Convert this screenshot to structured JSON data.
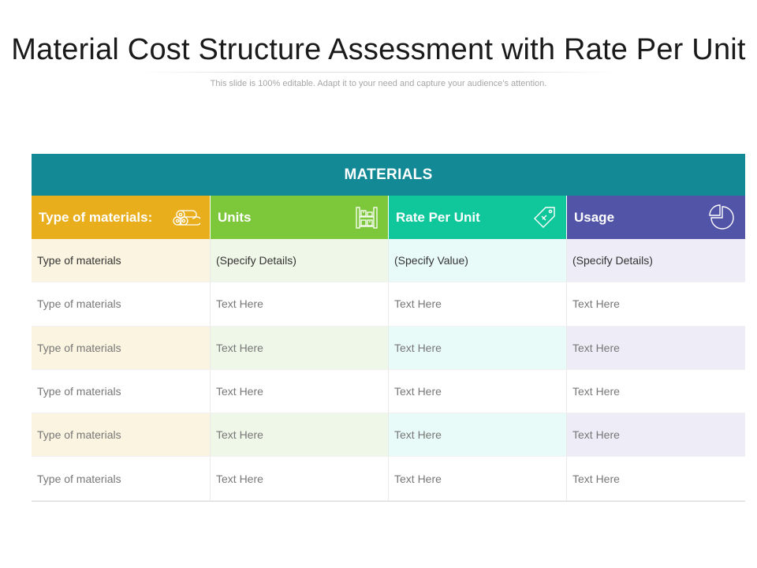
{
  "title": "Material Cost Structure Assessment with Rate Per Unit",
  "subtitle": "This slide is 100% editable. Adapt it to your need and capture your audience’s attention.",
  "table": {
    "band_label": "MATERIALS",
    "columns": [
      {
        "label": "Type of materials:",
        "icon": "material-rolls-icon",
        "color": "#E8AE1B"
      },
      {
        "label": "Units",
        "icon": "pallet-rack-icon",
        "color": "#7DC73A"
      },
      {
        "label": "Rate Per Unit",
        "icon": "price-tag-icon",
        "color": "#10C79C"
      },
      {
        "label": "Usage",
        "icon": "pie-chart-icon",
        "color": "#5254A8"
      }
    ],
    "band_color": "#128995",
    "rows": [
      [
        "Type of materials",
        "(Specify Details)",
        "(Specify Value)",
        "(Specify Details)"
      ],
      [
        "Type of materials",
        "Text Here",
        "Text Here",
        "Text Here"
      ],
      [
        "Type of materials",
        "Text Here",
        "Text Here",
        "Text Here"
      ],
      [
        "Type of materials",
        "Text Here",
        "Text Here",
        "Text Here"
      ],
      [
        "Type of materials",
        "Text Here",
        "Text Here",
        "Text Here"
      ],
      [
        "Type of materials",
        "Text Here",
        "Text Here",
        "Text Here"
      ]
    ]
  }
}
